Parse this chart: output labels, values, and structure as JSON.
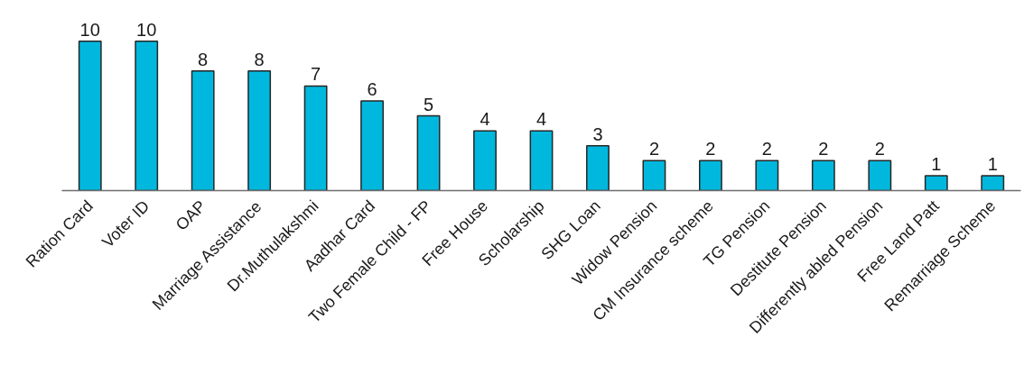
{
  "chart_data": {
    "type": "bar",
    "categories": [
      "Ration Card",
      "Voter ID",
      "OAP",
      "Marriage Assistance",
      "Dr.Muthulakshmi",
      "Aadhar Card",
      "Two Female Child - FP",
      "Free House",
      "Scholarship",
      "SHG Loan",
      "Widow Pension",
      "CM Insurance scheme",
      "TG Pension",
      "Destitute Pension",
      "Differently abled Pension",
      "Free Land Patt",
      "Remarriage Scheme"
    ],
    "values": [
      10,
      10,
      8,
      8,
      7,
      6,
      5,
      4,
      4,
      3,
      2,
      2,
      2,
      2,
      2,
      1,
      1
    ],
    "color": "#00b8de",
    "data_labels": true,
    "grid": false
  }
}
